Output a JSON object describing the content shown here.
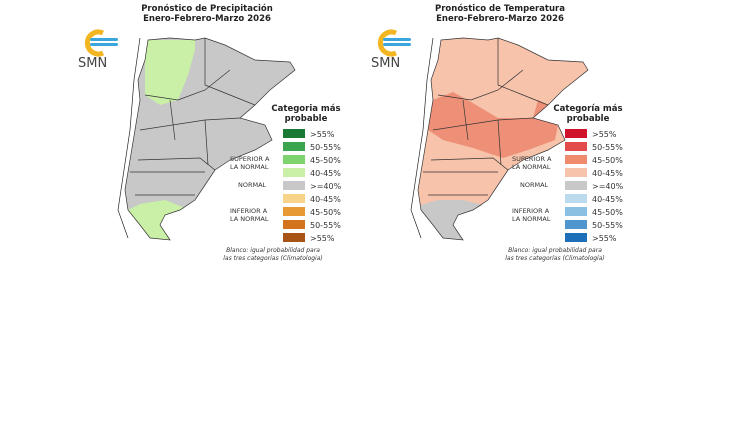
{
  "panels": [
    {
      "title_line1": "Pronóstico de Precipitación",
      "title_line2": "Enero-Febrero-Marzo 2026",
      "logo_text": "SMN",
      "legend_title_line1": "Categoria más",
      "legend_title_line2": "probable",
      "category_above_line1": "SUPERIOR A",
      "category_above_line2": "LA NORMAL",
      "category_normal": "NORMAL",
      "category_below_line1": "INFERIOR A",
      "category_below_line2": "LA NORMAL",
      "note_line1": "Blanco: igual probabilidad para",
      "note_line2": "las tres categorias (Climatologia)",
      "legend": [
        {
          "label": ">55%",
          "color": "#1a7a35"
        },
        {
          "label": "50-55%",
          "color": "#3aa54d"
        },
        {
          "label": "45-50%",
          "color": "#7ed36e"
        },
        {
          "label": "40-45%",
          "color": "#c9f0a6"
        },
        {
          "label": ">=40%",
          "color": "#c8c8c8"
        },
        {
          "label": "40-45%",
          "color": "#f8d38a"
        },
        {
          "label": "45-50%",
          "color": "#e79a34"
        },
        {
          "label": "50-55%",
          "color": "#d4731e"
        },
        {
          "label": ">55%",
          "color": "#a85414"
        }
      ],
      "base_color": "#c8c8c8",
      "highlight_color": "#c9f0a6"
    },
    {
      "title_line1": "Pronóstico de Temperatura",
      "title_line2": "Enero-Febrero-Marzo 2026",
      "logo_text": "SMN",
      "legend_title_line1": "Categoría más",
      "legend_title_line2": "probable",
      "category_above_line1": "SUPERIOR A",
      "category_above_line2": "LA NORMAL",
      "category_normal": "NORMAL",
      "category_below_line1": "INFERIOR A",
      "category_below_line2": "LA NORMAL",
      "note_line1": "Blanco: igual probabilidad para",
      "note_line2": "las tres categorías (Climatología)",
      "legend": [
        {
          "label": ">55%",
          "color": "#d0122b"
        },
        {
          "label": "50-55%",
          "color": "#e34b4a"
        },
        {
          "label": "45-50%",
          "color": "#f08a6c"
        },
        {
          "label": "40-45%",
          "color": "#f7c3ab"
        },
        {
          "label": ">=40%",
          "color": "#c8c8c8"
        },
        {
          "label": "40-45%",
          "color": "#bcdaed"
        },
        {
          "label": "45-50%",
          "color": "#8cc0e2"
        },
        {
          "label": "50-55%",
          "color": "#4f96cf"
        },
        {
          "label": ">55%",
          "color": "#1d6fb8"
        }
      ],
      "base_color": "#f7c3ab",
      "highlight_color": "#ee9077",
      "south_color": "#c8c8c8"
    }
  ]
}
